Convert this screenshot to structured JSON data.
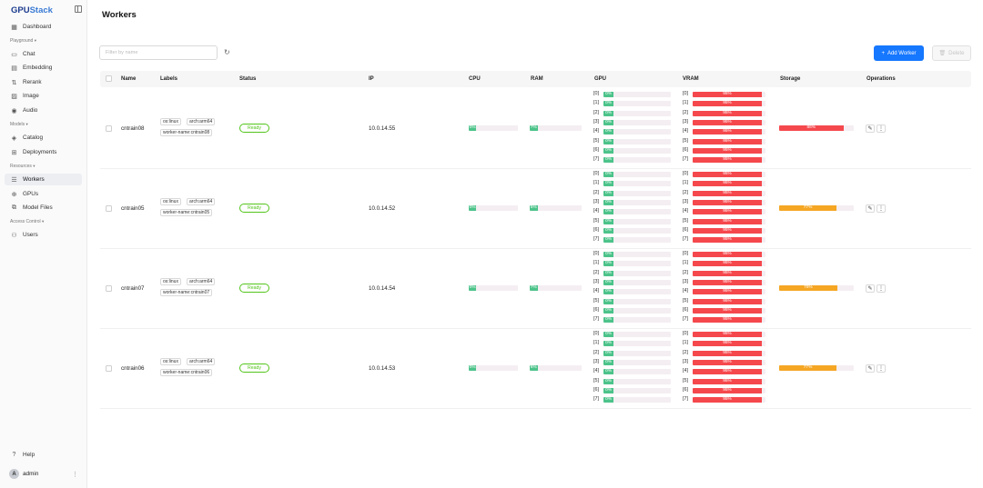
{
  "app": {
    "logo_main": "GPU",
    "logo_accent": "Stack"
  },
  "sidebar": {
    "dashboard": "Dashboard",
    "groups": {
      "playground": "Playground",
      "models": "Models",
      "resources": "Resources",
      "access": "Access Control"
    },
    "chat": "Chat",
    "embedding": "Embedding",
    "rerank": "Rerank",
    "image": "Image",
    "audio": "Audio",
    "catalog": "Catalog",
    "deployments": "Deployments",
    "workers": "Workers",
    "gpus": "GPUs",
    "model_files": "Model Files",
    "users": "Users",
    "help": "Help",
    "user": {
      "avatar": "A",
      "name": "admin"
    }
  },
  "page": {
    "title": "Workers",
    "filter_placeholder": "Filter by name",
    "add_button": "Add Worker",
    "delete_button": "Delete"
  },
  "table": {
    "columns": {
      "name": "Name",
      "labels": "Labels",
      "status": "Status",
      "ip": "IP",
      "cpu": "CPU",
      "ram": "RAM",
      "gpu": "GPU",
      "vram": "VRAM",
      "storage": "Storage",
      "operations": "Operations"
    },
    "gpu_indices": [
      "[0]",
      "[1]",
      "[2]",
      "[3]",
      "[4]",
      "[5]",
      "[6]",
      "[7]"
    ],
    "rows": [
      {
        "name": "cntrain08",
        "labels": [
          "os:linux",
          "arch:arm64",
          "worker-name:cntrain08"
        ],
        "status": "Ready",
        "ip": "10.0.14.55",
        "cpu": {
          "percent": 15,
          "text": "0%"
        },
        "ram": {
          "percent": 15,
          "text": "7%"
        },
        "gpu": [
          {
            "percent": 15,
            "text": "0%"
          },
          {
            "percent": 15,
            "text": "0%"
          },
          {
            "percent": 15,
            "text": "0%"
          },
          {
            "percent": 15,
            "text": "0%"
          },
          {
            "percent": 15,
            "text": "0%"
          },
          {
            "percent": 15,
            "text": "0%"
          },
          {
            "percent": 15,
            "text": "0%"
          },
          {
            "percent": 15,
            "text": "0%"
          }
        ],
        "vram": [
          {
            "percent": 95,
            "text": "95%"
          },
          {
            "percent": 95,
            "text": "95%"
          },
          {
            "percent": 95,
            "text": "95%"
          },
          {
            "percent": 95,
            "text": "95%"
          },
          {
            "percent": 95,
            "text": "95%"
          },
          {
            "percent": 95,
            "text": "95%"
          },
          {
            "percent": 95,
            "text": "95%"
          },
          {
            "percent": 95,
            "text": "95%"
          }
        ],
        "storage": {
          "percent": 86,
          "text": "86%",
          "color": "red"
        }
      },
      {
        "name": "cntrain05",
        "labels": [
          "os:linux",
          "arch:arm64",
          "worker-name:cntrain05"
        ],
        "status": "Ready",
        "ip": "10.0.14.52",
        "cpu": {
          "percent": 15,
          "text": "0%"
        },
        "ram": {
          "percent": 15,
          "text": "5%"
        },
        "gpu": [
          {
            "percent": 15,
            "text": "0%"
          },
          {
            "percent": 15,
            "text": "0%"
          },
          {
            "percent": 15,
            "text": "0%"
          },
          {
            "percent": 15,
            "text": "0%"
          },
          {
            "percent": 15,
            "text": "0%"
          },
          {
            "percent": 15,
            "text": "0%"
          },
          {
            "percent": 15,
            "text": "0%"
          },
          {
            "percent": 15,
            "text": "0%"
          }
        ],
        "vram": [
          {
            "percent": 95,
            "text": "95%"
          },
          {
            "percent": 95,
            "text": "95%"
          },
          {
            "percent": 95,
            "text": "95%"
          },
          {
            "percent": 95,
            "text": "95%"
          },
          {
            "percent": 95,
            "text": "95%"
          },
          {
            "percent": 95,
            "text": "95%"
          },
          {
            "percent": 95,
            "text": "95%"
          },
          {
            "percent": 95,
            "text": "95%"
          }
        ],
        "storage": {
          "percent": 77,
          "text": "77%",
          "color": "orange"
        }
      },
      {
        "name": "cntrain07",
        "labels": [
          "os:linux",
          "arch:arm64",
          "worker-name:cntrain07"
        ],
        "status": "Ready",
        "ip": "10.0.14.54",
        "cpu": {
          "percent": 15,
          "text": "0%"
        },
        "ram": {
          "percent": 15,
          "text": "7%"
        },
        "gpu": [
          {
            "percent": 15,
            "text": "0%"
          },
          {
            "percent": 15,
            "text": "0%"
          },
          {
            "percent": 15,
            "text": "0%"
          },
          {
            "percent": 15,
            "text": "0%"
          },
          {
            "percent": 15,
            "text": "0%"
          },
          {
            "percent": 15,
            "text": "0%"
          },
          {
            "percent": 15,
            "text": "0%"
          },
          {
            "percent": 15,
            "text": "0%"
          }
        ],
        "vram": [
          {
            "percent": 95,
            "text": "95%"
          },
          {
            "percent": 95,
            "text": "95%"
          },
          {
            "percent": 95,
            "text": "95%"
          },
          {
            "percent": 95,
            "text": "95%"
          },
          {
            "percent": 95,
            "text": "95%"
          },
          {
            "percent": 95,
            "text": "95%"
          },
          {
            "percent": 95,
            "text": "95%"
          },
          {
            "percent": 95,
            "text": "95%"
          }
        ],
        "storage": {
          "percent": 78,
          "text": "78%",
          "color": "orange"
        }
      },
      {
        "name": "cntrain06",
        "labels": [
          "os:linux",
          "arch:arm64",
          "worker-name:cntrain06"
        ],
        "status": "Ready",
        "ip": "10.0.14.53",
        "cpu": {
          "percent": 15,
          "text": "0%"
        },
        "ram": {
          "percent": 15,
          "text": "6%"
        },
        "gpu": [
          {
            "percent": 15,
            "text": "0%"
          },
          {
            "percent": 15,
            "text": "0%"
          },
          {
            "percent": 15,
            "text": "0%"
          },
          {
            "percent": 15,
            "text": "0%"
          },
          {
            "percent": 15,
            "text": "0%"
          },
          {
            "percent": 15,
            "text": "0%"
          },
          {
            "percent": 15,
            "text": "0%"
          },
          {
            "percent": 15,
            "text": "0%"
          }
        ],
        "vram": [
          {
            "percent": 95,
            "text": "95%"
          },
          {
            "percent": 95,
            "text": "95%"
          },
          {
            "percent": 95,
            "text": "95%"
          },
          {
            "percent": 95,
            "text": "95%"
          },
          {
            "percent": 95,
            "text": "95%"
          },
          {
            "percent": 95,
            "text": "95%"
          },
          {
            "percent": 95,
            "text": "95%"
          },
          {
            "percent": 95,
            "text": "95%"
          }
        ],
        "storage": {
          "percent": 77,
          "text": "77%",
          "color": "orange"
        }
      }
    ]
  },
  "colors": {
    "primary": "#1677ff",
    "usage_low": "#4cc38a",
    "usage_high": "#f5484d",
    "usage_mid": "#f5a623",
    "ready": "#52c41a"
  }
}
